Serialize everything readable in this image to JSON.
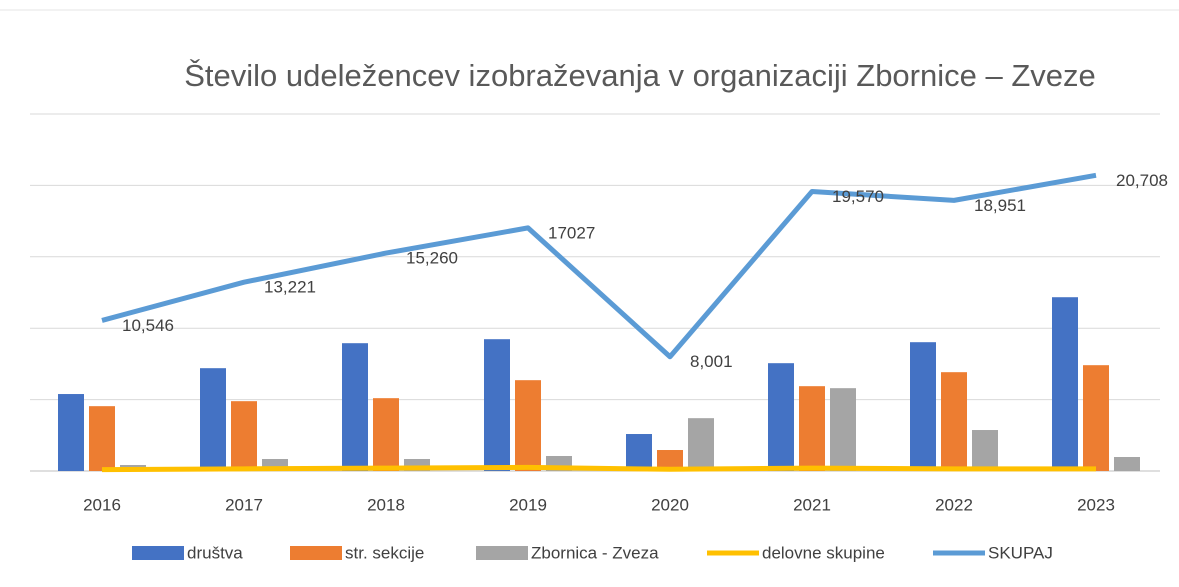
{
  "chart_data": {
    "type": "bar_line",
    "title": "Število udeležencev izobraževanja v organizaciji Zbornice – Zveze",
    "categories": [
      "2016",
      "2017",
      "2018",
      "2019",
      "2020",
      "2021",
      "2022",
      "2023"
    ],
    "series": [
      {
        "name": "društva",
        "color": "#4472c4",
        "type": "bar",
        "values": [
          5390,
          7200,
          8950,
          9230,
          2590,
          7550,
          9020,
          12170
        ]
      },
      {
        "name": "str. sekcije",
        "color": "#ed7d31",
        "type": "bar",
        "values": [
          4540,
          4890,
          5100,
          6360,
          1470,
          5940,
          6920,
          7410
        ]
      },
      {
        "name": "Zbornica - Zveza",
        "color": "#a5a5a5",
        "type": "bar",
        "values": [
          420,
          840,
          840,
          1050,
          3700,
          5800,
          2870,
          980
        ]
      },
      {
        "name": "delovne skupine",
        "color": "#ffc000",
        "type": "line",
        "values": [
          100,
          150,
          200,
          250,
          120,
          200,
          150,
          150
        ]
      },
      {
        "name": "SKUPAJ",
        "color": "#5b9bd5",
        "type": "line",
        "values": [
          10546,
          13221,
          15260,
          17027,
          8001,
          19570,
          18951,
          20708
        ],
        "value_labels": [
          "10,546",
          "13,221",
          "15,260",
          "17027",
          "8,001",
          "19,570",
          "18,951",
          "20,708"
        ]
      }
    ],
    "ylim": [
      0,
      25000
    ],
    "yticks": [
      0,
      5000,
      10000,
      15000,
      20000,
      25000
    ],
    "grid": true
  }
}
